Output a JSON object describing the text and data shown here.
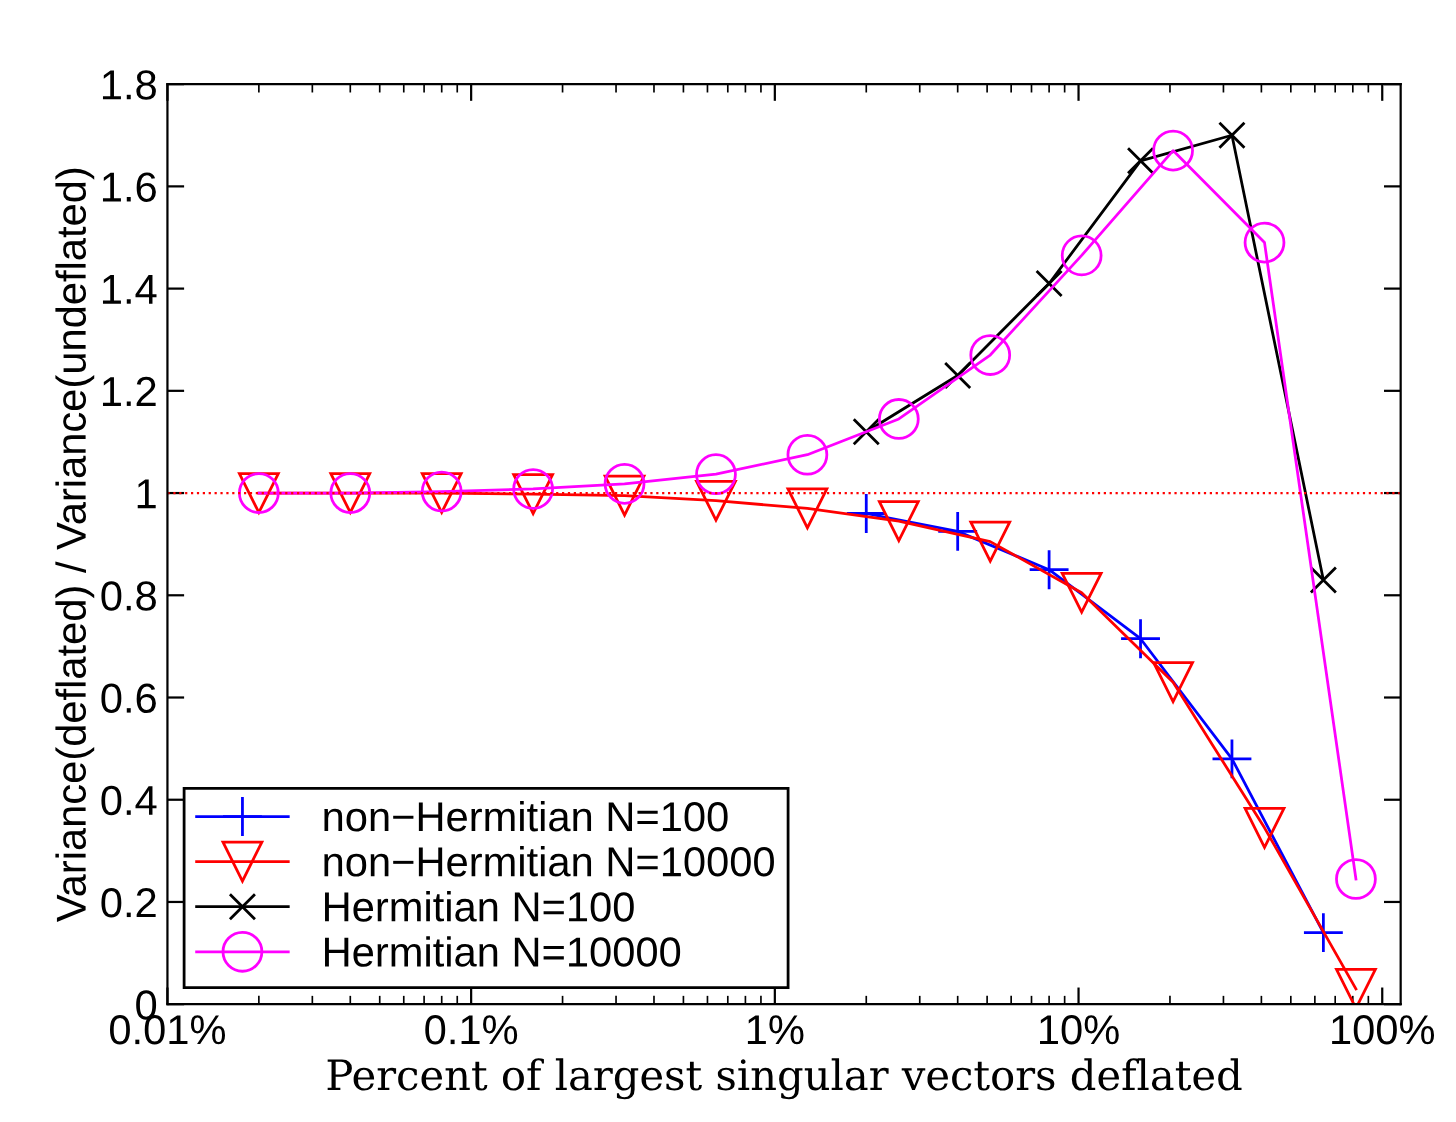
{
  "chart_data": {
    "type": "line",
    "xlabel": "Percent of largest singular vectors deflated",
    "ylabel": "Variance(deflated) / Variance(undeflated)",
    "log": "x",
    "xlim": [
      0.01,
      115
    ],
    "xticks": [
      {
        "value": 0.01,
        "label": "0.01%"
      },
      {
        "value": 0.1,
        "label": "0.1%"
      },
      {
        "value": 1,
        "label": "1%"
      },
      {
        "value": 10,
        "label": "10%"
      },
      {
        "value": 100,
        "label": "100%"
      }
    ],
    "ylim": [
      0,
      1.8
    ],
    "yticks": [
      0,
      0.2,
      0.4,
      0.6,
      0.8,
      1,
      1.2,
      1.4,
      1.6,
      1.8
    ],
    "grid": false,
    "legend": "bottom left",
    "line_style": "solid",
    "ref_lines": [
      {
        "axis": "y",
        "value": 1,
        "color": "#ff0000",
        "line_style": "dotted"
      }
    ],
    "series": [
      {
        "name": "non−Hermitian N=100",
        "color": "#0000ff",
        "marker": "plus",
        "x": [
          2,
          4,
          8,
          16,
          32,
          64
        ],
        "values": [
          0.96,
          0.925,
          0.85,
          0.715,
          0.48,
          0.14
        ]
      },
      {
        "name": "non−Hermitian N=10000",
        "color": "#ff0000",
        "marker": "triangle",
        "x": [
          0.02,
          0.04,
          0.08,
          0.16,
          0.32,
          0.64,
          1.28,
          2.56,
          5.12,
          10.24,
          20.48,
          40.96,
          81.92
        ],
        "values": [
          1.0,
          1.0,
          1.0,
          0.998,
          0.995,
          0.985,
          0.97,
          0.945,
          0.905,
          0.805,
          0.63,
          0.345,
          0.03
        ]
      },
      {
        "name": "Hermitian N=100",
        "color": "#000000",
        "marker": "cross",
        "x": [
          2,
          4,
          8,
          16,
          32,
          64
        ],
        "values": [
          1.12,
          1.23,
          1.41,
          1.65,
          1.7,
          0.83
        ]
      },
      {
        "name": "Hermitian N=10000",
        "color": "#ff00ff",
        "marker": "circle",
        "x": [
          0.02,
          0.04,
          0.08,
          0.16,
          0.32,
          0.64,
          1.28,
          2.56,
          5.12,
          10.24,
          20.48,
          40.96,
          81.92
        ],
        "values": [
          1.0,
          1.0,
          1.003,
          1.008,
          1.018,
          1.037,
          1.075,
          1.145,
          1.27,
          1.465,
          1.67,
          1.49,
          0.245
        ]
      }
    ]
  }
}
